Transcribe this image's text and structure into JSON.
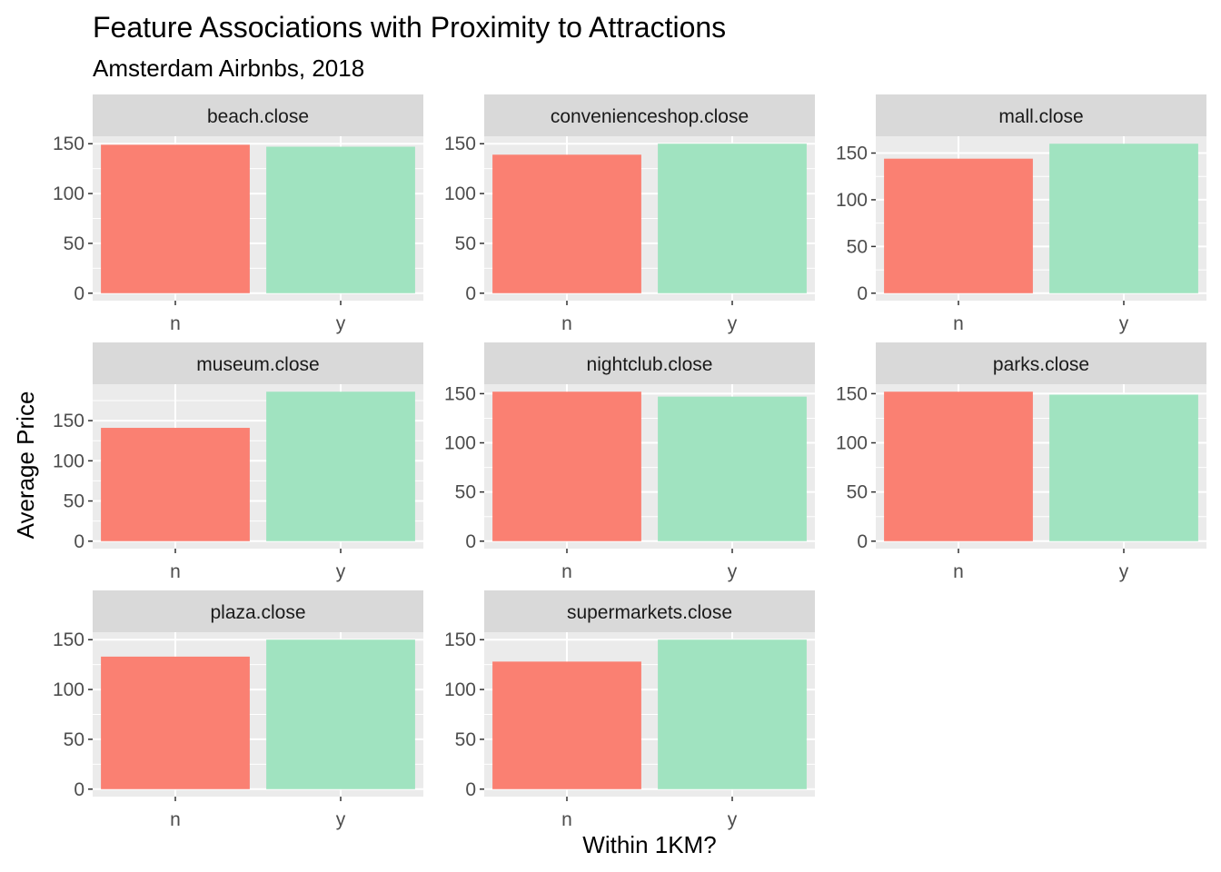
{
  "chart_data": {
    "type": "bar",
    "title": "Feature Associations with Proximity to Attractions",
    "subtitle": "Amsterdam Airbnbs, 2018",
    "xlabel": "Within 1KM?",
    "ylabel": "Average Price",
    "categories": [
      "n",
      "y"
    ],
    "grid": true,
    "legend": "none",
    "colors": {
      "n": "#FA8072",
      "y": "#A0E3C0",
      "panel_bg": "#EBEBEB",
      "strip_bg": "#D9D9D9",
      "grid": "#FFFFFF"
    },
    "panels": [
      {
        "name": "beach.close",
        "values": [
          149,
          147
        ],
        "ylim": [
          -7.5,
          157.5
        ],
        "yticks": [
          0,
          50,
          100,
          150
        ],
        "yticklabels": [
          "0",
          "50",
          "100",
          "150"
        ]
      },
      {
        "name": "convenienceshop.close",
        "values": [
          139,
          150
        ],
        "ylim": [
          -7.5,
          157.5
        ],
        "yticks": [
          0,
          50,
          100,
          150
        ],
        "yticklabels": [
          "0",
          "50",
          "100",
          "150"
        ]
      },
      {
        "name": "mall.close",
        "values": [
          144,
          160
        ],
        "ylim": [
          -8,
          168
        ],
        "yticks": [
          0,
          50,
          100,
          150
        ],
        "yticklabels": [
          "0",
          "50",
          "100",
          "150"
        ]
      },
      {
        "name": "museum.close",
        "values": [
          141,
          186
        ],
        "ylim": [
          -9.3,
          195.3
        ],
        "yticks": [
          0,
          50,
          100,
          150
        ],
        "yticklabels": [
          "0",
          "50",
          "100",
          "150"
        ]
      },
      {
        "name": "nightclub.close",
        "values": [
          152,
          147
        ],
        "ylim": [
          -7.6,
          159.6
        ],
        "yticks": [
          0,
          50,
          100,
          150
        ],
        "yticklabels": [
          "0",
          "50",
          "100",
          "150"
        ]
      },
      {
        "name": "parks.close",
        "values": [
          152,
          149
        ],
        "ylim": [
          -7.6,
          159.6
        ],
        "yticks": [
          0,
          50,
          100,
          150
        ],
        "yticklabels": [
          "0",
          "50",
          "100",
          "150"
        ]
      },
      {
        "name": "plaza.close",
        "values": [
          133,
          150
        ],
        "ylim": [
          -7.5,
          157.5
        ],
        "yticks": [
          0,
          50,
          100,
          150
        ],
        "yticklabels": [
          "0",
          "50",
          "100",
          "150"
        ]
      },
      {
        "name": "supermarkets.close",
        "values": [
          128,
          150
        ],
        "ylim": [
          -7.5,
          157.5
        ],
        "yticks": [
          0,
          50,
          100,
          150
        ],
        "yticklabels": [
          "0",
          "50",
          "100",
          "150"
        ]
      }
    ]
  }
}
